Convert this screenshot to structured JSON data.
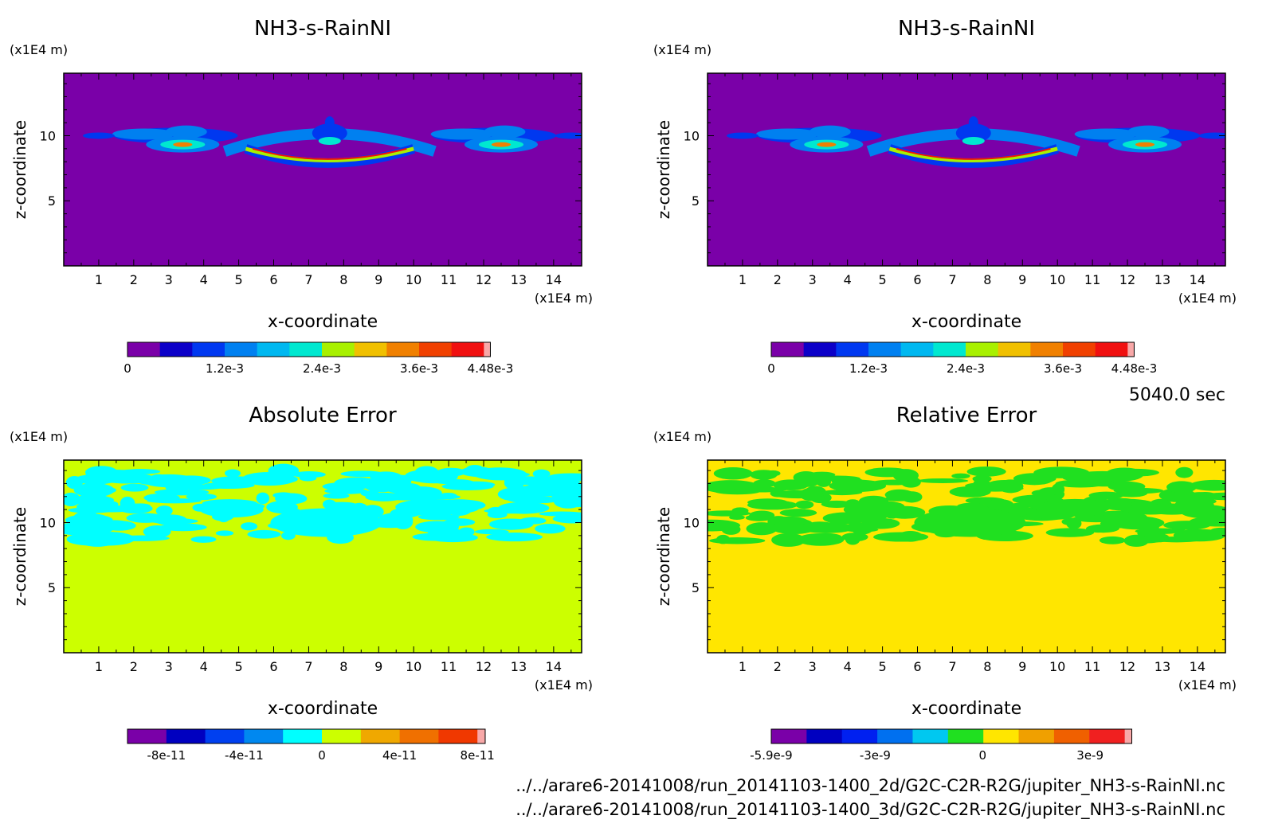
{
  "chart_data": [
    {
      "type": "heatmap",
      "title": "NH3-s-RainNI",
      "xlabel": "x-coordinate",
      "ylabel": "z-coordinate",
      "x_unit": "(x1E4 m)",
      "y_unit": "(x1E4 m)",
      "xlim": [
        0,
        14.8
      ],
      "ylim": [
        0,
        14.8
      ],
      "x_ticks": [
        1,
        2,
        3,
        4,
        5,
        6,
        7,
        8,
        9,
        10,
        11,
        12,
        13,
        14
      ],
      "y_ticks": [
        5,
        10
      ],
      "background_color": "#7a00a8",
      "colorbar": {
        "colors": [
          "#7a00a8",
          "#0c00c8",
          "#0038f0",
          "#0080f0",
          "#00b8f0",
          "#00e8d0",
          "#a8f000",
          "#f0c000",
          "#f08000",
          "#f04000",
          "#f01010",
          "#f8a8a8"
        ],
        "tick_values": [
          0,
          0.0012,
          0.0024,
          0.0036,
          0.00448
        ],
        "tick_labels": [
          "0",
          "1.2e-3",
          "2.4e-3",
          "3.6e-3",
          "4.48e-3"
        ]
      }
    },
    {
      "type": "heatmap",
      "title": "NH3-s-RainNI",
      "xlabel": "x-coordinate",
      "ylabel": "z-coordinate",
      "x_unit": "(x1E4 m)",
      "y_unit": "(x1E4 m)",
      "xlim": [
        0,
        14.8
      ],
      "ylim": [
        0,
        14.8
      ],
      "x_ticks": [
        1,
        2,
        3,
        4,
        5,
        6,
        7,
        8,
        9,
        10,
        11,
        12,
        13,
        14
      ],
      "y_ticks": [
        5,
        10
      ],
      "background_color": "#7a00a8",
      "colorbar": {
        "colors": [
          "#7a00a8",
          "#0c00c8",
          "#0038f0",
          "#0080f0",
          "#00b8f0",
          "#00e8d0",
          "#a8f000",
          "#f0c000",
          "#f08000",
          "#f04000",
          "#f01010",
          "#f8a8a8"
        ],
        "tick_values": [
          0,
          0.0012,
          0.0024,
          0.0036,
          0.00448
        ],
        "tick_labels": [
          "0",
          "1.2e-3",
          "2.4e-3",
          "3.6e-3",
          "4.48e-3"
        ]
      }
    },
    {
      "type": "heatmap",
      "title": "Absolute Error",
      "xlabel": "x-coordinate",
      "ylabel": "z-coordinate",
      "x_unit": "(x1E4 m)",
      "y_unit": "(x1E4 m)",
      "xlim": [
        0,
        14.8
      ],
      "ylim": [
        0,
        14.8
      ],
      "x_ticks": [
        1,
        2,
        3,
        4,
        5,
        6,
        7,
        8,
        9,
        10,
        11,
        12,
        13,
        14
      ],
      "y_ticks": [
        5,
        10
      ],
      "background_color": "#ccff00",
      "colorbar": {
        "colors": [
          "#7a00a8",
          "#0000c0",
          "#0040f0",
          "#0088f0",
          "#00ffff",
          "#ccff00",
          "#f0a800",
          "#f07000",
          "#f03800",
          "#f8a8a8"
        ],
        "tick_values": [
          -8e-11,
          -4e-11,
          0,
          4e-11,
          8e-11
        ],
        "tick_labels": [
          "-8e-11",
          "-4e-11",
          "0",
          "4e-11",
          "8e-11"
        ]
      }
    },
    {
      "type": "heatmap",
      "title": "Relative Error",
      "xlabel": "x-coordinate",
      "ylabel": "z-coordinate",
      "x_unit": "(x1E4 m)",
      "y_unit": "(x1E4 m)",
      "xlim": [
        0,
        14.8
      ],
      "ylim": [
        0,
        14.8
      ],
      "x_ticks": [
        1,
        2,
        3,
        4,
        5,
        6,
        7,
        8,
        9,
        10,
        11,
        12,
        13,
        14
      ],
      "y_ticks": [
        5,
        10
      ],
      "background_color": "#ffe600",
      "colorbar": {
        "colors": [
          "#7a00a8",
          "#0000c0",
          "#0020f0",
          "#0070f0",
          "#00c8f0",
          "#20e020",
          "#ffe600",
          "#f0a000",
          "#f06000",
          "#f02020",
          "#f8a8a8"
        ],
        "tick_values": [
          -5.9e-09,
          -3e-09,
          0,
          3e-09
        ],
        "tick_labels": [
          "-5.9e-9",
          "-3e-9",
          "0",
          "3e-9"
        ]
      }
    }
  ],
  "time_label": "5040.0 sec",
  "files": [
    "../../arare6-20141008/run_20141103-1400_2d/G2C-C2R-R2G/jupiter_NH3-s-RainNI.nc",
    "../../arare6-20141008/run_20141103-1400_3d/G2C-C2R-R2G/jupiter_NH3-s-RainNI.nc"
  ]
}
